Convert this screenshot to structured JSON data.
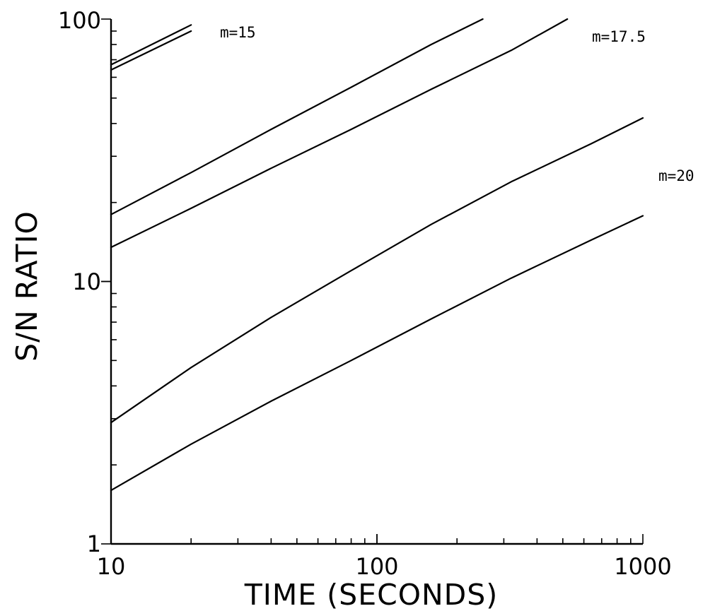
{
  "chart_data": {
    "type": "line",
    "xlabel": "TIME (SECONDS)",
    "ylabel": "S/N RATIO",
    "xscale": "log",
    "yscale": "log",
    "xlim": [
      10,
      1000
    ],
    "ylim": [
      1,
      100
    ],
    "grid": false,
    "x_tick_labels": [
      "10",
      "100",
      "1000"
    ],
    "y_tick_labels": [
      "1",
      "10",
      "100"
    ],
    "annotations": [
      "m=15",
      "m=17.5",
      "m=20"
    ],
    "series": [
      {
        "x": [
          10,
          20
        ],
        "y": [
          67,
          95
        ]
      },
      {
        "x": [
          10,
          20
        ],
        "y": [
          64,
          90
        ]
      },
      {
        "x": [
          10,
          20,
          40,
          80,
          160,
          250
        ],
        "y": [
          18,
          26,
          38,
          55,
          80,
          100
        ]
      },
      {
        "x": [
          10,
          20,
          40,
          80,
          160,
          320,
          520
        ],
        "y": [
          13.5,
          19,
          27,
          38,
          54,
          76,
          100
        ]
      },
      {
        "x": [
          10,
          20,
          40,
          80,
          160,
          320,
          640,
          1000
        ],
        "y": [
          2.9,
          4.7,
          7.3,
          11,
          16.5,
          24,
          33.5,
          42
        ]
      },
      {
        "x": [
          10,
          20,
          40,
          80,
          160,
          320,
          640,
          1000
        ],
        "y": [
          1.6,
          2.4,
          3.5,
          5.0,
          7.2,
          10.3,
          14.4,
          17.8
        ]
      }
    ]
  }
}
